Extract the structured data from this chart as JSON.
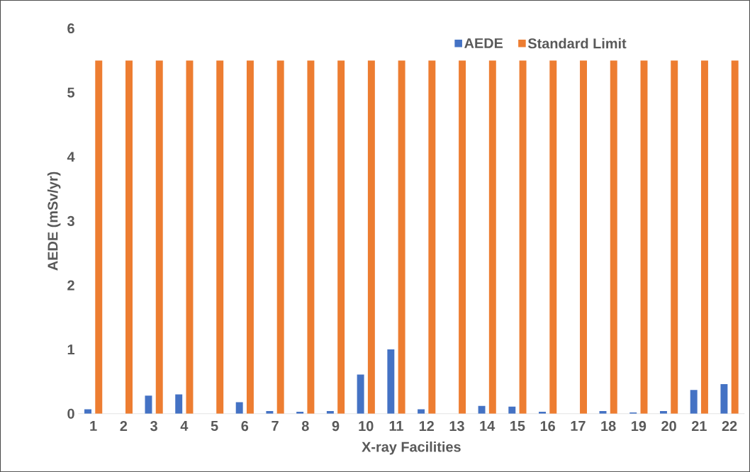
{
  "chart_data": {
    "type": "bar",
    "xlabel": "X-ray Facilities",
    "ylabel": "AEDE (mSv/yr)",
    "categories": [
      "1",
      "2",
      "3",
      "4",
      "5",
      "6",
      "7",
      "8",
      "9",
      "10",
      "11",
      "12",
      "13",
      "14",
      "15",
      "16",
      "17",
      "18",
      "19",
      "20",
      "21",
      "22"
    ],
    "series": [
      {
        "name": "AEDE",
        "color": "#4472c4",
        "values": [
          0.07,
          0,
          0.28,
          0.3,
          0,
          0.18,
          0.04,
          0.03,
          0.04,
          0.61,
          1.0,
          0.07,
          0,
          0.12,
          0.11,
          0.03,
          0,
          0.04,
          0.02,
          0.04,
          0.37,
          0.46
        ]
      },
      {
        "name": "Standard Limit",
        "color": "#ed7d31",
        "values": [
          5.5,
          5.5,
          5.5,
          5.5,
          5.5,
          5.5,
          5.5,
          5.5,
          5.5,
          5.5,
          5.5,
          5.5,
          5.5,
          5.5,
          5.5,
          5.5,
          5.5,
          5.5,
          5.5,
          5.5,
          5.5,
          5.5
        ]
      }
    ],
    "ylim": [
      0,
      6
    ],
    "yticks": [
      0,
      1,
      2,
      3,
      4,
      5,
      6
    ],
    "grid": false,
    "legend": "top right"
  }
}
